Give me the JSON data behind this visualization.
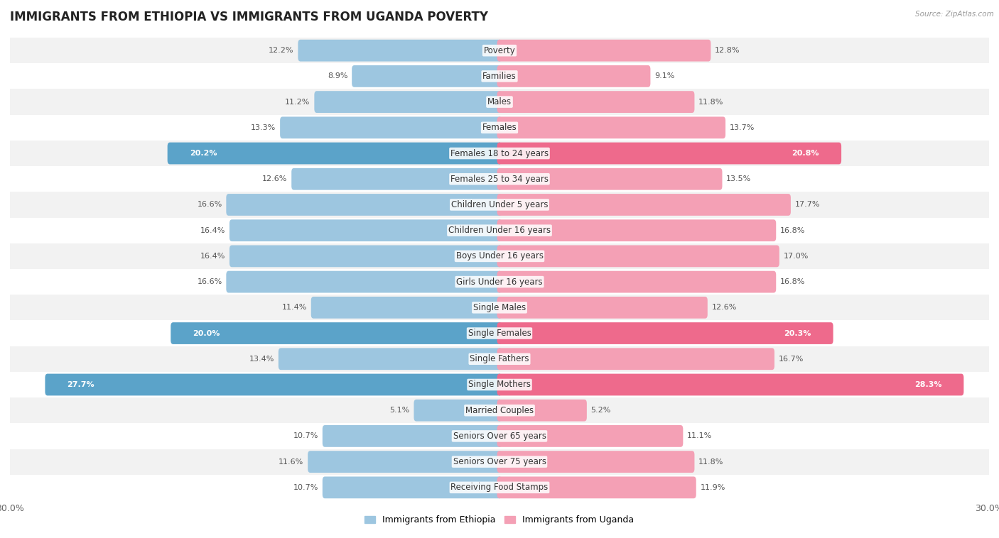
{
  "title": "IMMIGRANTS FROM ETHIOPIA VS IMMIGRANTS FROM UGANDA POVERTY",
  "source": "Source: ZipAtlas.com",
  "categories": [
    "Poverty",
    "Families",
    "Males",
    "Females",
    "Females 18 to 24 years",
    "Females 25 to 34 years",
    "Children Under 5 years",
    "Children Under 16 years",
    "Boys Under 16 years",
    "Girls Under 16 years",
    "Single Males",
    "Single Females",
    "Single Fathers",
    "Single Mothers",
    "Married Couples",
    "Seniors Over 65 years",
    "Seniors Over 75 years",
    "Receiving Food Stamps"
  ],
  "ethiopia_values": [
    12.2,
    8.9,
    11.2,
    13.3,
    20.2,
    12.6,
    16.6,
    16.4,
    16.4,
    16.6,
    11.4,
    20.0,
    13.4,
    27.7,
    5.1,
    10.7,
    11.6,
    10.7
  ],
  "uganda_values": [
    12.8,
    9.1,
    11.8,
    13.7,
    20.8,
    13.5,
    17.7,
    16.8,
    17.0,
    16.8,
    12.6,
    20.3,
    16.7,
    28.3,
    5.2,
    11.1,
    11.8,
    11.9
  ],
  "ethiopia_color": "#9DC6E0",
  "uganda_color": "#F4A0B5",
  "ethiopia_highlight_color": "#5BA3C9",
  "uganda_highlight_color": "#EE6A8C",
  "highlight_rows": [
    4,
    11,
    13
  ],
  "background_color": "#FFFFFF",
  "row_alt_color": "#F2F2F2",
  "row_main_color": "#FFFFFF",
  "axis_max": 30.0,
  "legend_ethiopia": "Immigrants from Ethiopia",
  "legend_uganda": "Immigrants from Uganda",
  "title_fontsize": 12,
  "label_fontsize": 8.5,
  "value_fontsize": 8.0
}
